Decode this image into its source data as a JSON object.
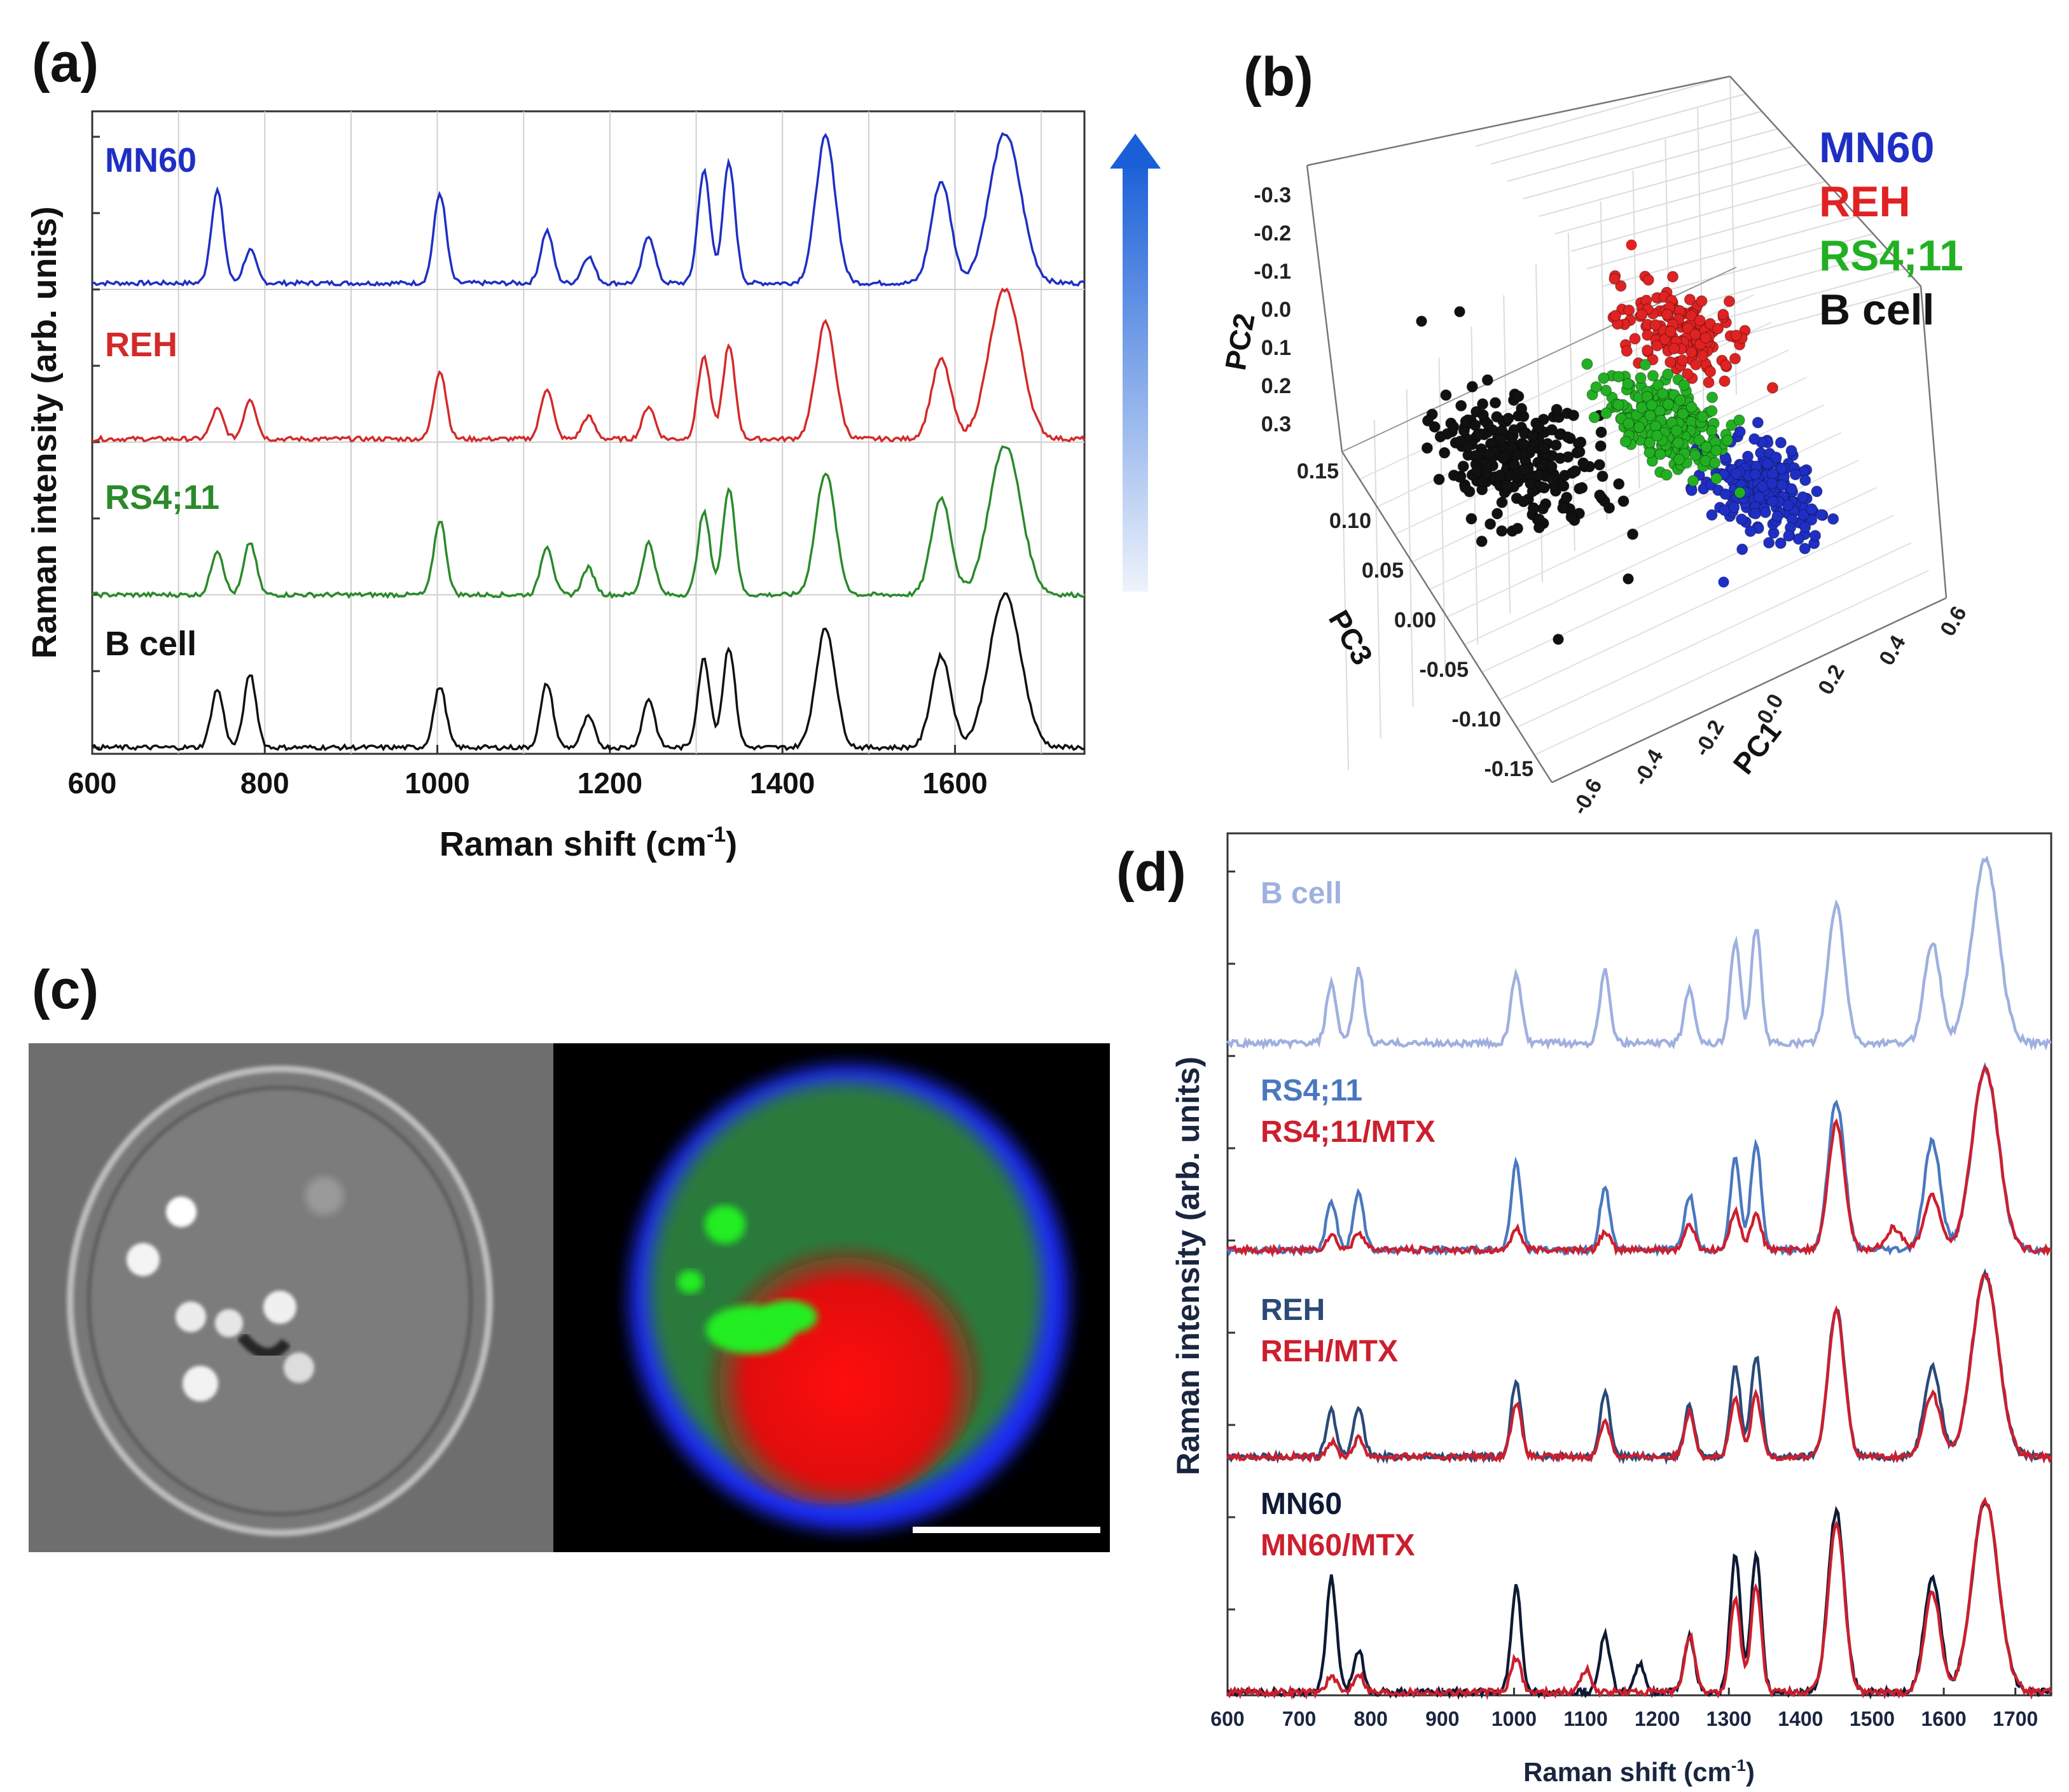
{
  "panel_labels": {
    "a": "(a)",
    "b": "(b)",
    "c": "(c)",
    "d": "(d)"
  },
  "colors": {
    "mn60": "#1f2fc4",
    "reh": "#d42a2a",
    "rs411": "#2a8a2a",
    "bcell": "#111111",
    "mtx": "#cc1f2e",
    "d_bcell": "#9fb0e0",
    "d_rs411": "#4a78c0",
    "d_reh": "#2a4a78",
    "d_mn60": "#0e1a35"
  },
  "chart_data": [
    {
      "id": "a",
      "type": "line",
      "title": "",
      "xlabel": "Raman shift (cm-1)",
      "xlabel_main": "Raman shift (cm",
      "xlabel_sup": "-1",
      "xlabel_end": ")",
      "ylabel": "Raman intensity (arb. units)",
      "xlim": [
        600,
        1750
      ],
      "xticks": [
        "600",
        "800",
        "1000",
        "1200",
        "1400",
        "1600"
      ],
      "grid": true,
      "series": [
        {
          "name": "MN60",
          "color": "#1f2fc4",
          "peaks": [
            [
              745,
              0.62
            ],
            [
              783,
              0.22
            ],
            [
              1003,
              0.6
            ],
            [
              1127,
              0.35
            ],
            [
              1175,
              0.18
            ],
            [
              1245,
              0.32
            ],
            [
              1309,
              0.75
            ],
            [
              1338,
              0.8
            ],
            [
              1450,
              0.98
            ],
            [
              1584,
              0.68
            ],
            [
              1658,
              1.0
            ]
          ]
        },
        {
          "name": "REH",
          "color": "#d42a2a",
          "peaks": [
            [
              745,
              0.2
            ],
            [
              783,
              0.27
            ],
            [
              1003,
              0.46
            ],
            [
              1127,
              0.34
            ],
            [
              1175,
              0.15
            ],
            [
              1245,
              0.22
            ],
            [
              1309,
              0.55
            ],
            [
              1338,
              0.62
            ],
            [
              1450,
              0.78
            ],
            [
              1584,
              0.53
            ],
            [
              1658,
              1.0
            ]
          ]
        },
        {
          "name": "RS4;11",
          "color": "#2a8a2a",
          "peaks": [
            [
              745,
              0.3
            ],
            [
              783,
              0.35
            ],
            [
              1003,
              0.5
            ],
            [
              1127,
              0.33
            ],
            [
              1175,
              0.18
            ],
            [
              1245,
              0.35
            ],
            [
              1309,
              0.55
            ],
            [
              1338,
              0.72
            ],
            [
              1450,
              0.82
            ],
            [
              1584,
              0.65
            ],
            [
              1658,
              1.0
            ]
          ]
        },
        {
          "name": "B cell",
          "color": "#111111",
          "peaks": [
            [
              745,
              0.38
            ],
            [
              783,
              0.48
            ],
            [
              1003,
              0.4
            ],
            [
              1127,
              0.42
            ],
            [
              1175,
              0.2
            ],
            [
              1245,
              0.32
            ],
            [
              1309,
              0.58
            ],
            [
              1338,
              0.66
            ],
            [
              1450,
              0.78
            ],
            [
              1584,
              0.6
            ],
            [
              1658,
              1.0
            ]
          ]
        }
      ]
    },
    {
      "id": "b",
      "type": "scatter",
      "title": "",
      "axes": {
        "PC1": {
          "label": "PC1",
          "ticks": [
            "-0.6",
            "-0.4",
            "-0.2",
            "0.0",
            "0.2",
            "0.4",
            "0.6"
          ]
        },
        "PC2": {
          "label": "PC2",
          "ticks": [
            "-0.3",
            "-0.2",
            "-0.1",
            "0.0",
            "0.1",
            "0.2",
            "0.3"
          ]
        },
        "PC3": {
          "label": "PC3",
          "ticks": [
            "-0.15",
            "-0.10",
            "-0.05",
            "0.00",
            "0.05",
            "0.10",
            "0.15"
          ]
        }
      },
      "legend": {
        "position": "top-right"
      },
      "groups": [
        {
          "name": "MN60",
          "color": "#1f2fc4"
        },
        {
          "name": "REH",
          "color": "#e02222"
        },
        {
          "name": "RS4;11",
          "color": "#22b022"
        },
        {
          "name": "B cell",
          "color": "#111111"
        }
      ]
    },
    {
      "id": "d",
      "type": "line",
      "title": "",
      "xlabel": "Raman shift (cm-1)",
      "xlabel_main": "Raman shift (cm",
      "xlabel_sup": "-1",
      "xlabel_end": ")",
      "ylabel": "Raman intensity (arb. units)",
      "xlim": [
        600,
        1750
      ],
      "xticks": [
        "600",
        "700",
        "800",
        "900",
        "1000",
        "1100",
        "1200",
        "1300",
        "1400",
        "1500",
        "1600",
        "1700"
      ],
      "grid": false,
      "groups": [
        {
          "labels": [
            "B cell"
          ],
          "label_colors": [
            "#9fb0e0"
          ],
          "series": [
            {
              "name": "B cell",
              "color": "#9fb0e0",
              "peaks": [
                [
                  745,
                  0.32
                ],
                [
                  783,
                  0.4
                ],
                [
                  1003,
                  0.38
                ],
                [
                  1127,
                  0.4
                ],
                [
                  1245,
                  0.3
                ],
                [
                  1309,
                  0.55
                ],
                [
                  1338,
                  0.62
                ],
                [
                  1450,
                  0.75
                ],
                [
                  1584,
                  0.55
                ],
                [
                  1658,
                  1.0
                ]
              ]
            }
          ]
        },
        {
          "labels": [
            "RS4;11",
            "RS4;11/MTX"
          ],
          "label_colors": [
            "#4a78c0",
            "#cc1f2e"
          ],
          "series": [
            {
              "name": "RS4;11",
              "color": "#4a78c0",
              "peaks": [
                [
                  745,
                  0.27
                ],
                [
                  783,
                  0.32
                ],
                [
                  1003,
                  0.48
                ],
                [
                  1127,
                  0.34
                ],
                [
                  1245,
                  0.3
                ],
                [
                  1309,
                  0.5
                ],
                [
                  1338,
                  0.6
                ],
                [
                  1450,
                  0.82
                ],
                [
                  1584,
                  0.6
                ],
                [
                  1658,
                  1.0
                ]
              ]
            },
            {
              "name": "RS4;11/MTX",
              "color": "#cc1f2e",
              "peaks": [
                [
                  745,
                  0.08
                ],
                [
                  783,
                  0.1
                ],
                [
                  1003,
                  0.12
                ],
                [
                  1127,
                  0.1
                ],
                [
                  1245,
                  0.14
                ],
                [
                  1309,
                  0.22
                ],
                [
                  1338,
                  0.2
                ],
                [
                  1450,
                  0.7
                ],
                [
                  1530,
                  0.12
                ],
                [
                  1584,
                  0.3
                ],
                [
                  1658,
                  1.0
                ]
              ]
            }
          ]
        },
        {
          "labels": [
            "REH",
            "REH/MTX"
          ],
          "label_colors": [
            "#2a4a78",
            "#cc1f2e"
          ],
          "series": [
            {
              "name": "REH",
              "color": "#2a4a78",
              "peaks": [
                [
                  745,
                  0.25
                ],
                [
                  783,
                  0.28
                ],
                [
                  1003,
                  0.42
                ],
                [
                  1127,
                  0.35
                ],
                [
                  1245,
                  0.28
                ],
                [
                  1309,
                  0.5
                ],
                [
                  1338,
                  0.56
                ],
                [
                  1450,
                  0.82
                ],
                [
                  1584,
                  0.5
                ],
                [
                  1658,
                  1.0
                ]
              ]
            },
            {
              "name": "REH/MTX",
              "color": "#cc1f2e",
              "peaks": [
                [
                  745,
                  0.08
                ],
                [
                  783,
                  0.1
                ],
                [
                  1003,
                  0.3
                ],
                [
                  1127,
                  0.2
                ],
                [
                  1245,
                  0.25
                ],
                [
                  1309,
                  0.32
                ],
                [
                  1338,
                  0.34
                ],
                [
                  1450,
                  0.8
                ],
                [
                  1584,
                  0.35
                ],
                [
                  1658,
                  1.0
                ]
              ]
            }
          ]
        },
        {
          "labels": [
            "MN60",
            "MN60/MTX"
          ],
          "label_colors": [
            "#0e1a35",
            "#cc1f2e"
          ],
          "series": [
            {
              "name": "MN60",
              "color": "#0e1a35",
              "peaks": [
                [
                  745,
                  0.6
                ],
                [
                  783,
                  0.22
                ],
                [
                  1003,
                  0.55
                ],
                [
                  1127,
                  0.3
                ],
                [
                  1175,
                  0.15
                ],
                [
                  1245,
                  0.3
                ],
                [
                  1309,
                  0.72
                ],
                [
                  1338,
                  0.72
                ],
                [
                  1450,
                  0.95
                ],
                [
                  1584,
                  0.6
                ],
                [
                  1658,
                  1.0
                ]
              ]
            },
            {
              "name": "MN60/MTX",
              "color": "#cc1f2e",
              "peaks": [
                [
                  745,
                  0.08
                ],
                [
                  783,
                  0.1
                ],
                [
                  1003,
                  0.18
                ],
                [
                  1100,
                  0.12
                ],
                [
                  1245,
                  0.3
                ],
                [
                  1309,
                  0.5
                ],
                [
                  1338,
                  0.56
                ],
                [
                  1450,
                  0.88
                ],
                [
                  1584,
                  0.52
                ],
                [
                  1658,
                  1.0
                ]
              ]
            }
          ]
        }
      ]
    }
  ],
  "panel_c": {
    "description_free": true
  }
}
